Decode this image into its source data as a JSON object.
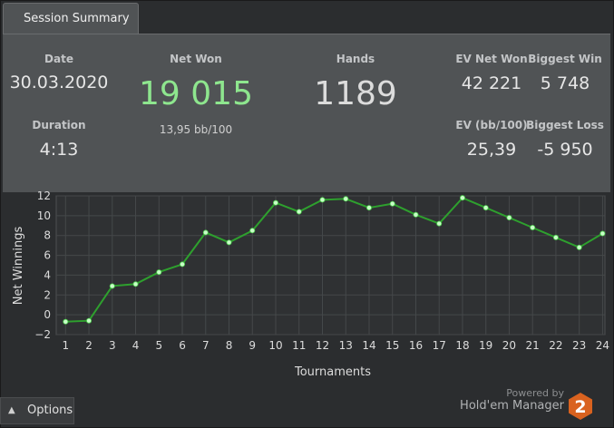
{
  "tab": {
    "label": "Session Summary"
  },
  "stats": {
    "date": {
      "label": "Date",
      "value": "30.03.2020"
    },
    "duration": {
      "label": "Duration",
      "value": "4:13"
    },
    "net_won": {
      "label": "Net Won",
      "value": "19 015",
      "sub": "13,95 bb/100"
    },
    "hands": {
      "label": "Hands",
      "value": "1189"
    },
    "ev_net_won": {
      "label": "EV Net Won",
      "value": "42 221"
    },
    "biggest_win": {
      "label": "Biggest Win",
      "value": "5 748"
    },
    "ev_bb100": {
      "label": "EV (bb/100)",
      "value": "25,39"
    },
    "biggest_loss": {
      "label": "Biggest Loss",
      "value": "-5 950"
    }
  },
  "colors": {
    "net_won": "#8ee68e",
    "line": "#2ea02e",
    "panel": "#505355",
    "background": "#2b2d2f"
  },
  "chart_data": {
    "type": "line",
    "x": [
      1,
      2,
      3,
      4,
      5,
      6,
      7,
      8,
      9,
      10,
      11,
      12,
      13,
      14,
      15,
      16,
      17,
      18,
      19,
      20,
      21,
      22,
      23,
      24
    ],
    "series": [
      {
        "values": [
          -0.7,
          -0.6,
          2.9,
          3.1,
          4.3,
          5.1,
          8.3,
          7.3,
          8.5,
          11.3,
          10.4,
          11.6,
          11.7,
          10.8,
          11.2,
          10.1,
          9.2,
          11.8,
          10.8,
          9.8,
          8.8,
          7.8,
          6.8,
          8.2
        ]
      }
    ],
    "xlabel": "Tournaments",
    "ylabel": "Net Winnings",
    "xticks": [
      "1",
      "2",
      "3",
      "4",
      "5",
      "6",
      "7",
      "8",
      "9",
      "10",
      "11",
      "12",
      "13",
      "14",
      "15",
      "16",
      "17",
      "18",
      "19",
      "20",
      "21",
      "22",
      "23",
      "24"
    ],
    "yticks": [
      "12",
      "10",
      "8",
      "6",
      "4",
      "2",
      "0",
      "−2"
    ],
    "ylim": [
      -2,
      12
    ],
    "xlim": [
      0.6,
      24.1
    ],
    "grid": true
  },
  "options": {
    "label": "Options",
    "caret_icon": "caret-up-icon"
  },
  "branding": {
    "powered_by": "Powered by",
    "product": "Hold'em Manager",
    "logo_text": "2"
  }
}
